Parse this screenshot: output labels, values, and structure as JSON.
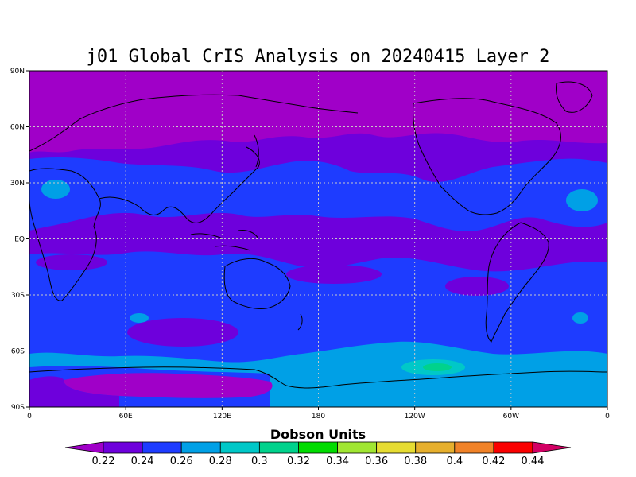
{
  "title": "j01 Global CrIS Analysis on 20240415 Layer 2",
  "colorbar_title": "Dobson Units",
  "lat_labels": [
    "90N",
    "60N",
    "30N",
    "EQ",
    "30S",
    "60S",
    "90S"
  ],
  "lon_labels": [
    "0",
    "60E",
    "120E",
    "180",
    "120W",
    "60W",
    "0"
  ],
  "colorbar": {
    "labels": [
      "0.22",
      "0.24",
      "0.26",
      "0.28",
      "0.3",
      "0.32",
      "0.34",
      "0.36",
      "0.38",
      "0.4",
      "0.42",
      "0.44"
    ],
    "colors": [
      "#a000c8",
      "#6e00dc",
      "#1e3cff",
      "#00a0e6",
      "#00c8c8",
      "#00d28c",
      "#00dc00",
      "#a0e632",
      "#e6dc32",
      "#e6af2d",
      "#f08228",
      "#fa0000",
      "#d20064"
    ]
  },
  "chart_data": {
    "type": "heatmap",
    "title": "j01 Global CrIS Analysis on 20240415 Layer 2",
    "colorbar_label": "Dobson Units",
    "x_ticks": [
      "0",
      "60E",
      "120E",
      "180",
      "120W",
      "60W",
      "0"
    ],
    "y_ticks": [
      "90N",
      "60N",
      "30N",
      "EQ",
      "30S",
      "60S",
      "90S"
    ],
    "x_range": [
      0,
      360
    ],
    "y_range": [
      -90,
      90
    ],
    "levels": [
      0.22,
      0.24,
      0.26,
      0.28,
      0.3,
      0.32,
      0.34,
      0.36,
      0.38,
      0.4,
      0.42,
      0.44
    ],
    "grid": true,
    "regions": [
      {
        "band": "north polar",
        "approx_value": 0.21
      },
      {
        "band": "northern mid-latitudes",
        "approx_value": 0.23
      },
      {
        "band": "tropics",
        "approx_value": 0.23
      },
      {
        "band": "southern mid-latitudes",
        "approx_value": 0.25
      },
      {
        "band": "southern ocean 60S-70S",
        "approx_value": 0.27
      },
      {
        "band": "antarctica east",
        "approx_value": 0.22
      },
      {
        "band": "antarctica west",
        "approx_value": 0.27
      }
    ]
  }
}
